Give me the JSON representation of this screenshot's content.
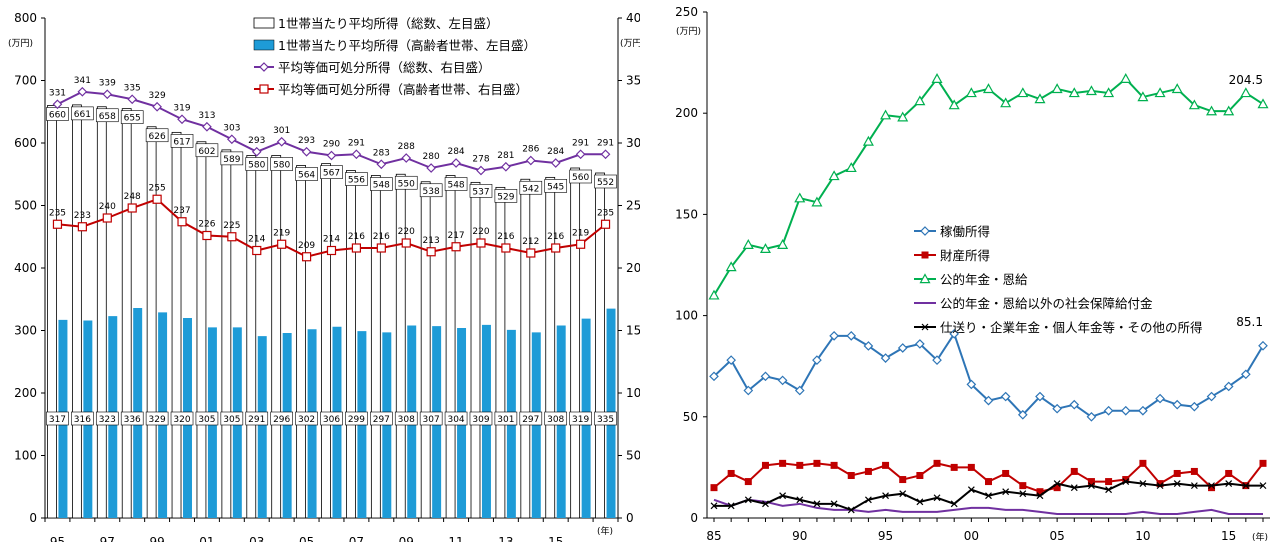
{
  "colors": {
    "bar_total_fill": "#ffffff",
    "bar_elderly_fill": "#1e9bd7",
    "line_total": "#7030a0",
    "line_elderly": "#c00000",
    "labor": "#2e75b6",
    "property": "#c00000",
    "pension": "#00b050",
    "social_security": "#7030a0",
    "other": "#000000"
  },
  "chart_data": [
    {
      "type": "bar",
      "x_tick_labels": [
        "95",
        "97",
        "99",
        "01",
        "03",
        "05",
        "07",
        "09",
        "11",
        "13",
        "15"
      ],
      "x_unit": "(年)",
      "left_axis": {
        "unit": "(万円)",
        "range": [
          0,
          800
        ],
        "ticks": [
          "0",
          "100",
          "200",
          "300",
          "400",
          "500",
          "600",
          "700",
          "800"
        ]
      },
      "right_axis": {
        "unit": "(万円)",
        "range": [
          0,
          400
        ],
        "ticks": [
          "0",
          "50",
          "100",
          "150",
          "200",
          "250",
          "300",
          "350",
          "400"
        ]
      },
      "years": [
        1995,
        1996,
        1997,
        1998,
        1999,
        2000,
        2001,
        2002,
        2003,
        2004,
        2005,
        2006,
        2007,
        2008,
        2009,
        2010,
        2011,
        2012,
        2013,
        2014,
        2015,
        2016,
        2017
      ],
      "series": [
        {
          "name": "1世帯当たり平均所得（総数、左目盛）",
          "kind": "bar",
          "axis": "left",
          "values": [
            660,
            661,
            658,
            655,
            626,
            617,
            602,
            589,
            580,
            580,
            564,
            567,
            556,
            548,
            550,
            538,
            548,
            537,
            529,
            542,
            545,
            560,
            552
          ]
        },
        {
          "name": "1世帯当たり平均所得（高齢者世帯、左目盛）",
          "kind": "bar",
          "axis": "left",
          "values": [
            317,
            316,
            323,
            336,
            329,
            320,
            305,
            305,
            291,
            296,
            302,
            306,
            299,
            297,
            308,
            307,
            304,
            309,
            301,
            297,
            308,
            319,
            335
          ]
        },
        {
          "name": "平均等価可処分所得（総数、右目盛）",
          "kind": "line",
          "marker": "diamond",
          "axis": "right",
          "values": [
            331,
            341,
            339,
            335,
            329,
            319,
            313,
            303,
            293,
            301,
            293,
            290,
            291,
            283,
            288,
            280,
            284,
            278,
            281,
            286,
            284,
            291,
            291
          ]
        },
        {
          "name": "平均等価可処分所得（高齢者世帯、右目盛）",
          "kind": "line",
          "marker": "square",
          "axis": "right",
          "values": [
            235,
            233,
            240,
            248,
            255,
            237,
            226,
            225,
            214,
            219,
            209,
            214,
            216,
            216,
            220,
            213,
            217,
            220,
            216,
            212,
            216,
            219,
            235
          ]
        }
      ]
    },
    {
      "type": "line",
      "x_tick_labels": [
        "85",
        "90",
        "95",
        "00",
        "05",
        "10",
        "15"
      ],
      "x_unit": "(年)",
      "y_axis": {
        "unit": "(万円)",
        "range": [
          0,
          250
        ],
        "ticks": [
          "0",
          "50",
          "100",
          "150",
          "200",
          "250"
        ]
      },
      "years": [
        1985,
        1986,
        1987,
        1988,
        1989,
        1990,
        1991,
        1992,
        1993,
        1994,
        1995,
        1996,
        1997,
        1998,
        1999,
        2000,
        2001,
        2002,
        2003,
        2004,
        2005,
        2006,
        2007,
        2008,
        2009,
        2010,
        2011,
        2012,
        2013,
        2014,
        2015,
        2016,
        2017
      ],
      "series": [
        {
          "name": "稼働所得",
          "marker": "diamond",
          "values": [
            70,
            78,
            63,
            70,
            68,
            63,
            78,
            90,
            90,
            85,
            79,
            84,
            86,
            78,
            91,
            66,
            58,
            60,
            51,
            60,
            54,
            56,
            50,
            53,
            53,
            53,
            59,
            56,
            55,
            60,
            65,
            71,
            85.1
          ],
          "end_label": "85.1"
        },
        {
          "name": "財産所得",
          "marker": "filled-square",
          "values": [
            15,
            22,
            18,
            26,
            27,
            26,
            27,
            26,
            21,
            23,
            26,
            19,
            21,
            27,
            25,
            25,
            18,
            22,
            16,
            13,
            15,
            23,
            18,
            18,
            19,
            27,
            17,
            22,
            23,
            15,
            22,
            16,
            27
          ]
        },
        {
          "name": "公的年金・恩給",
          "marker": "triangle",
          "values": [
            110,
            124,
            135,
            133,
            135,
            158,
            156,
            169,
            173,
            186,
            199,
            198,
            206,
            217,
            204,
            210,
            212,
            205,
            210,
            207,
            212,
            210,
            211,
            210,
            217,
            208,
            210,
            212,
            204,
            201,
            201,
            210,
            204.5
          ],
          "end_label": "204.5"
        },
        {
          "name": "公的年金・恩給以外の社会保障給付金",
          "marker": "none",
          "values": [
            9,
            6,
            9,
            8,
            6,
            7,
            5,
            4,
            4,
            3,
            4,
            3,
            3,
            3,
            4,
            5,
            5,
            4,
            4,
            3,
            2,
            2,
            2,
            2,
            2,
            3,
            2,
            2,
            3,
            4,
            2,
            2,
            2
          ]
        },
        {
          "name": "仕送り・企業年金・個人年金等・その他の所得",
          "marker": "x",
          "values": [
            6,
            6,
            9,
            7,
            11,
            9,
            7,
            7,
            4,
            9,
            11,
            12,
            8,
            10,
            7,
            14,
            11,
            13,
            12,
            11,
            17,
            15,
            16,
            14,
            18,
            17,
            16,
            17,
            16,
            16,
            17,
            16,
            16
          ]
        }
      ]
    }
  ]
}
